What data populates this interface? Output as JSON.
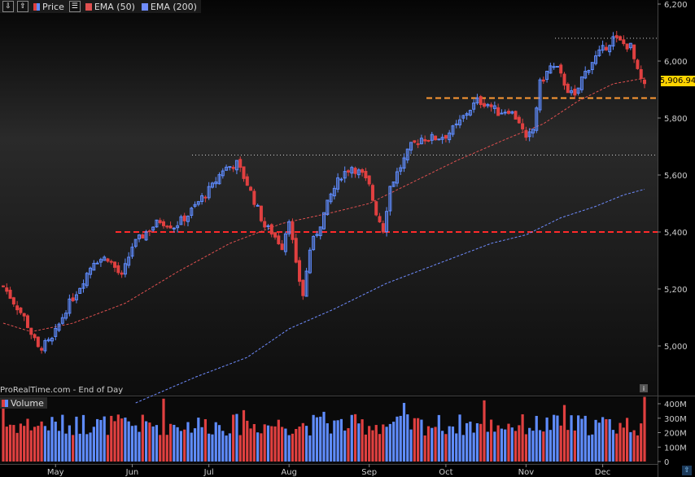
{
  "toolbar": {
    "price_label": "Price",
    "ema50_label": "EMA (50)",
    "ema200_label": "EMA (200)",
    "ema50_color": "#e05050",
    "ema200_color": "#6f8cff"
  },
  "source_label": "ProRealTime.com - End of Day",
  "volume_label": "Volume",
  "last_price_label": "5,906.94",
  "chart_data": [
    {
      "type": "candlestick",
      "title": "",
      "y_ticks": [
        "6,200",
        "6,000",
        "5,800",
        "5,600",
        "5,400",
        "5,200",
        "5,000"
      ],
      "y_tick_values": [
        6200,
        6000,
        5800,
        5600,
        5400,
        5200,
        5000
      ],
      "x_month_labels": [
        "May",
        "Jun",
        "Jul",
        "Aug",
        "Sep",
        "Oct",
        "Nov",
        "Dec"
      ],
      "ylim": [
        4800,
        6210
      ],
      "bars": 185,
      "month_start_bars": [
        15,
        37,
        59,
        82,
        105,
        127,
        150,
        172
      ],
      "close_anchors": [
        [
          0,
          5210
        ],
        [
          6,
          5100
        ],
        [
          10,
          4990
        ],
        [
          14,
          5020
        ],
        [
          18,
          5130
        ],
        [
          22,
          5210
        ],
        [
          26,
          5300
        ],
        [
          30,
          5310
        ],
        [
          34,
          5240
        ],
        [
          37,
          5350
        ],
        [
          41,
          5400
        ],
        [
          45,
          5440
        ],
        [
          49,
          5420
        ],
        [
          53,
          5460
        ],
        [
          57,
          5520
        ],
        [
          60,
          5560
        ],
        [
          63,
          5620
        ],
        [
          67,
          5640
        ],
        [
          70,
          5570
        ],
        [
          73,
          5480
        ],
        [
          75,
          5420
        ],
        [
          77,
          5400
        ],
        [
          80,
          5350
        ],
        [
          82,
          5450
        ],
        [
          84,
          5280
        ],
        [
          86,
          5180
        ],
        [
          88,
          5340
        ],
        [
          91,
          5430
        ],
        [
          94,
          5530
        ],
        [
          97,
          5600
        ],
        [
          100,
          5630
        ],
        [
          103,
          5600
        ],
        [
          105,
          5560
        ],
        [
          107,
          5470
        ],
        [
          109,
          5410
        ],
        [
          111,
          5560
        ],
        [
          114,
          5630
        ],
        [
          117,
          5700
        ],
        [
          120,
          5730
        ],
        [
          124,
          5730
        ],
        [
          127,
          5740
        ],
        [
          130,
          5770
        ],
        [
          133,
          5820
        ],
        [
          136,
          5860
        ],
        [
          139,
          5850
        ],
        [
          142,
          5820
        ],
        [
          145,
          5830
        ],
        [
          148,
          5790
        ],
        [
          150,
          5720
        ],
        [
          152,
          5760
        ],
        [
          154,
          5920
        ],
        [
          157,
          5980
        ],
        [
          159,
          5970
        ],
        [
          162,
          5900
        ],
        [
          164,
          5870
        ],
        [
          166,
          5940
        ],
        [
          169,
          6000
        ],
        [
          172,
          6040
        ],
        [
          175,
          6080
        ],
        [
          178,
          6060
        ],
        [
          180,
          6050
        ],
        [
          182,
          5960
        ],
        [
          184,
          5907
        ]
      ],
      "ema50_anchors": [
        [
          0,
          5080
        ],
        [
          8,
          5050
        ],
        [
          20,
          5080
        ],
        [
          35,
          5150
        ],
        [
          50,
          5260
        ],
        [
          65,
          5360
        ],
        [
          80,
          5430
        ],
        [
          95,
          5470
        ],
        [
          105,
          5500
        ],
        [
          115,
          5560
        ],
        [
          130,
          5650
        ],
        [
          145,
          5730
        ],
        [
          155,
          5780
        ],
        [
          165,
          5860
        ],
        [
          175,
          5920
        ],
        [
          184,
          5940
        ]
      ],
      "ema200_anchors": [
        [
          38,
          4800
        ],
        [
          55,
          4890
        ],
        [
          70,
          4960
        ],
        [
          82,
          5060
        ],
        [
          95,
          5130
        ],
        [
          110,
          5220
        ],
        [
          125,
          5290
        ],
        [
          140,
          5360
        ],
        [
          150,
          5390
        ],
        [
          160,
          5450
        ],
        [
          170,
          5490
        ],
        [
          178,
          5530
        ],
        [
          184,
          5550
        ]
      ],
      "support_lines": [
        {
          "kind": "thick-red",
          "value": 5400,
          "color": "#ff2a2a"
        },
        {
          "kind": "thick-orange",
          "value": 5870,
          "color": "#ff9933"
        },
        {
          "kind": "dotted",
          "value": 5670,
          "color": "#cccccc"
        },
        {
          "kind": "dotted",
          "value": 6080,
          "color": "#cccccc"
        }
      ],
      "last_price": 5906.94,
      "up_color": "#5f8cff",
      "down_color": "#e04040"
    },
    {
      "type": "bar",
      "title": "Volume",
      "y_ticks": [
        "400M",
        "300M",
        "200M",
        "100M",
        "0"
      ],
      "y_tick_values": [
        400,
        300,
        200,
        100,
        0
      ],
      "ylim": [
        0,
        420
      ]
    }
  ]
}
